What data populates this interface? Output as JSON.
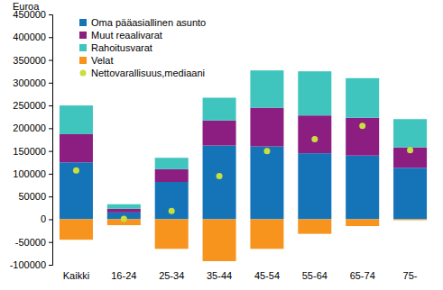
{
  "chart_data": {
    "type": "bar",
    "stacked": true,
    "ylabel": "Euroa",
    "categories": [
      "Kaikki",
      "16-24",
      "25-34",
      "35-44",
      "45-54",
      "55-64",
      "65-74",
      "75-"
    ],
    "series": [
      {
        "name": "Oma pääasiallinen asunto",
        "color": "#1574b8",
        "type": "bar",
        "values": [
          125000,
          15000,
          82000,
          162000,
          160000,
          145000,
          140000,
          113000
        ]
      },
      {
        "name": "Muut reaalivarat",
        "color": "#8b1e80",
        "type": "bar",
        "values": [
          62000,
          8000,
          28000,
          55000,
          85000,
          83000,
          83000,
          45000
        ]
      },
      {
        "name": "Rahoitusvarat",
        "color": "#40c4be",
        "type": "bar",
        "values": [
          63000,
          10000,
          25000,
          50000,
          82000,
          97000,
          87000,
          62000
        ]
      },
      {
        "name": "Velat",
        "color": "#f7941d",
        "type": "bar",
        "values": [
          -45000,
          -13000,
          -65000,
          -92000,
          -65000,
          -32000,
          -15000,
          -2000
        ]
      },
      {
        "name": "Nettovarallisuus,mediaani",
        "color": "#c8df3c",
        "type": "scatter",
        "marker": "circle",
        "values": [
          107000,
          1000,
          18000,
          95000,
          150000,
          176000,
          205000,
          152000
        ]
      }
    ],
    "ylim": [
      -100000,
      450000
    ],
    "yticks": [
      -100000,
      -50000,
      0,
      50000,
      100000,
      150000,
      200000,
      250000,
      300000,
      350000,
      400000,
      450000
    ],
    "grid": false,
    "legend": "upper left"
  }
}
